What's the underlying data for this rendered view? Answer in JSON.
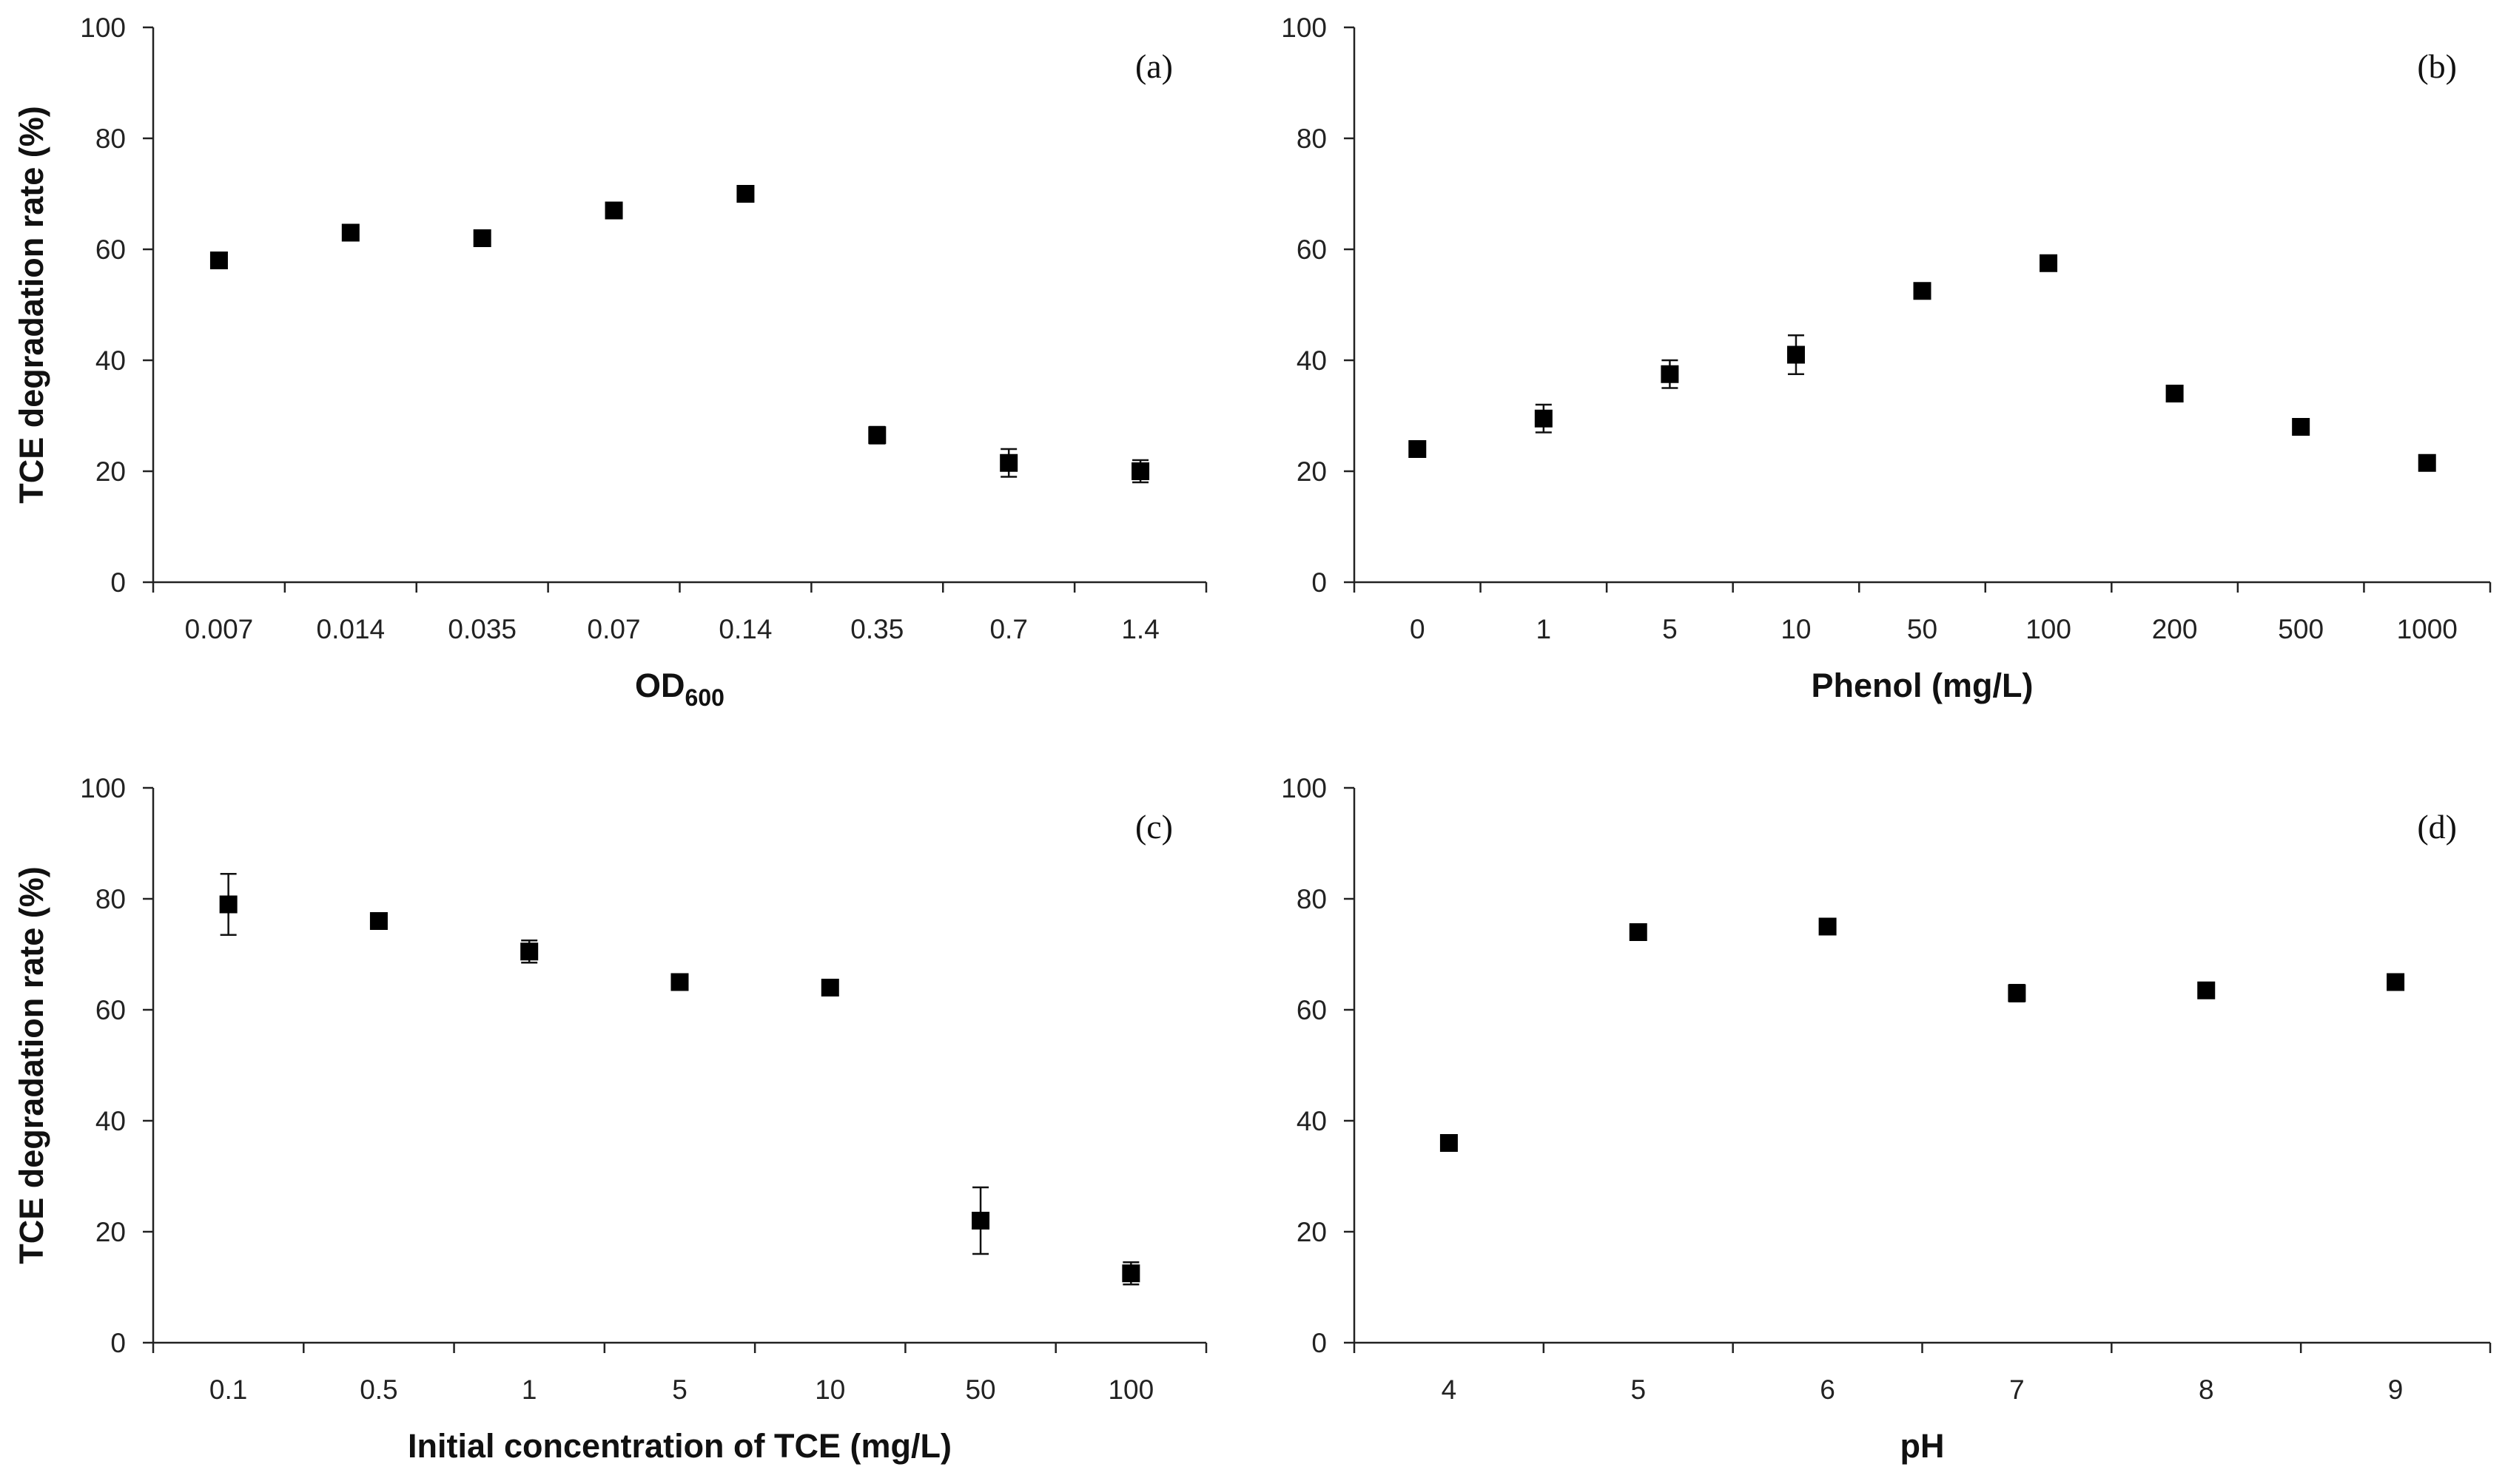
{
  "chart_data": [
    {
      "id": "a",
      "type": "scatter",
      "panel_label": "(a)",
      "categories": [
        "0.007",
        "0.014",
        "0.035",
        "0.07",
        "0.14",
        "0.35",
        "0.7",
        "1.4"
      ],
      "values": [
        58,
        63,
        62,
        67,
        70,
        26.5,
        21.5,
        20
      ],
      "errors": [
        0.5,
        0.5,
        0.5,
        0.5,
        0.5,
        1.5,
        2.5,
        2
      ],
      "xlabel": "OD",
      "xlabel_sub": "600",
      "ylabel": "TCE degradation rate (%)",
      "ylim": [
        0,
        100
      ],
      "yticks": [
        0,
        20,
        40,
        60,
        80,
        100
      ],
      "grid": false
    },
    {
      "id": "b",
      "type": "scatter",
      "panel_label": "(b)",
      "categories": [
        "0",
        "1",
        "5",
        "10",
        "50",
        "100",
        "200",
        "500",
        "1000"
      ],
      "values": [
        24,
        29.5,
        37.5,
        41,
        52.5,
        57.5,
        34,
        28,
        21.5
      ],
      "errors": [
        0.5,
        2.5,
        2.5,
        3.5,
        0.5,
        0.5,
        0.5,
        0.5,
        0.5
      ],
      "xlabel": "Phenol (mg/L)",
      "ylabel": "",
      "ylim": [
        0,
        100
      ],
      "yticks": [
        0,
        20,
        40,
        60,
        80,
        100
      ],
      "grid": false
    },
    {
      "id": "c",
      "type": "scatter",
      "panel_label": "(c)",
      "categories": [
        "0.1",
        "0.5",
        "1",
        "5",
        "10",
        "50",
        "100"
      ],
      "values": [
        79,
        76,
        70.5,
        65,
        64,
        22,
        12.5
      ],
      "errors": [
        5.5,
        0.5,
        2,
        0.5,
        1,
        6,
        2
      ],
      "xlabel": "Initial concentration of TCE (mg/L)",
      "ylabel": "TCE degradation rate (%)",
      "ylim": [
        0,
        100
      ],
      "yticks": [
        0,
        20,
        40,
        60,
        80,
        100
      ],
      "grid": false
    },
    {
      "id": "d",
      "type": "scatter",
      "panel_label": "(d)",
      "categories": [
        "4",
        "5",
        "6",
        "7",
        "8",
        "9"
      ],
      "values": [
        36,
        74,
        75,
        63,
        63.5,
        65
      ],
      "errors": [
        0.5,
        0.5,
        0.5,
        1.5,
        0.5,
        0.5
      ],
      "xlabel": "pH",
      "ylabel": "",
      "ylim": [
        0,
        100
      ],
      "yticks": [
        0,
        20,
        40,
        60,
        80,
        100
      ],
      "grid": false
    }
  ]
}
